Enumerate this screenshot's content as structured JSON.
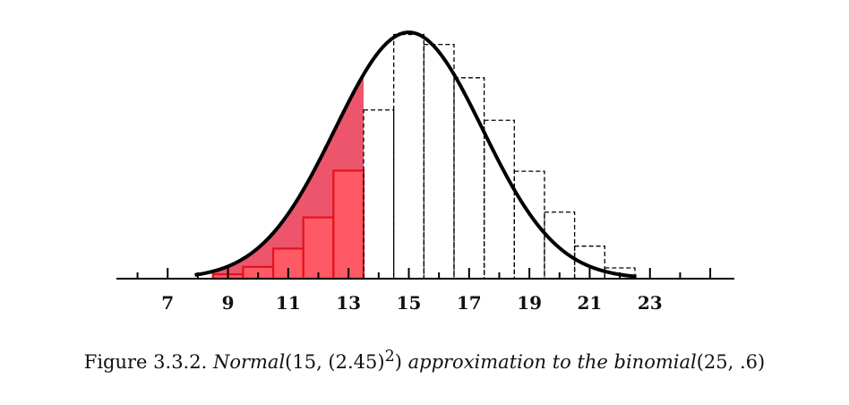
{
  "chart_data": {
    "type": "bar",
    "description_type": "histogram with normal curve overlay",
    "n": 25,
    "p": 0.6,
    "normal_mean": 15,
    "normal_sd": 2.45,
    "x": [
      9,
      10,
      11,
      12,
      13,
      14,
      15,
      16,
      17,
      18,
      19,
      20,
      21,
      22
    ],
    "values": [
      0.0029,
      0.0078,
      0.0199,
      0.0405,
      0.0714,
      0.1115,
      0.1614,
      0.1548,
      0.1328,
      0.1047,
      0.071,
      0.044,
      0.0215,
      0.0071
    ],
    "shaded_x": [
      9,
      10,
      11,
      12,
      13
    ],
    "xlim": [
      5.3,
      25.8
    ],
    "ylim": [
      0,
      0.17
    ],
    "x_tick_labels": [
      "7",
      "9",
      "11",
      "13",
      "15",
      "17",
      "19",
      "21",
      "23"
    ],
    "title": "",
    "xlabel": "",
    "ylabel": ""
  },
  "colors": {
    "curve": "#000000",
    "bar_stroke": "#000000",
    "shade_fill": "#ff4d5a",
    "shade_stroke": "#e0141e",
    "gap_fill": "#8080c8"
  },
  "caption": {
    "prefix": "Figure 3.3.2. ",
    "normal_word": "Normal",
    "params": "(15, (2.45)",
    "exp": "2",
    "close": ")",
    "middle": " approximation to the binomial",
    "tail": "(25, .6)"
  }
}
